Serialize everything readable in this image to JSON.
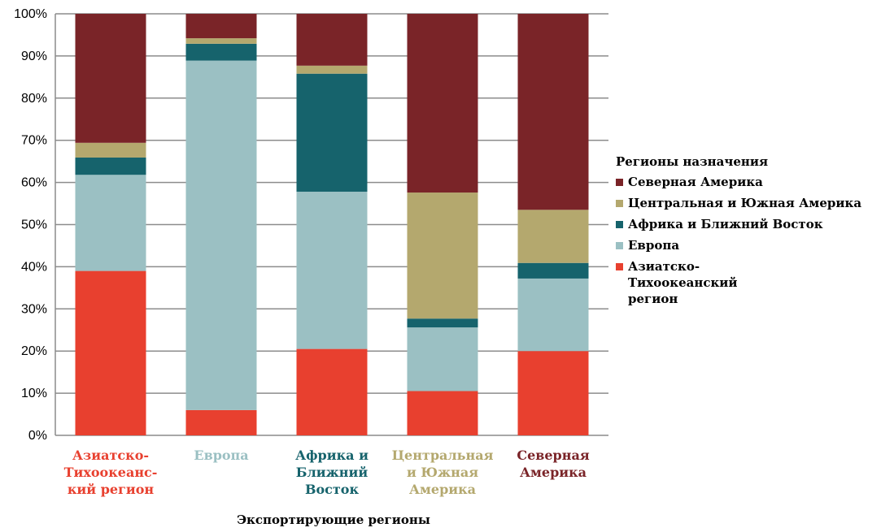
{
  "chart_data": {
    "type": "bar",
    "stacked": true,
    "percent": true,
    "categories": [
      "Азиатско-\nТихоокеанс-\nкий регион",
      "Европа",
      "Африка и\nБлижний\nВосток",
      "Центральная\nи Южная\nАмерика",
      "Северная\nАмерика"
    ],
    "category_colors": [
      "#e8402f",
      "#9bc0c3",
      "#16636c",
      "#b4a86e",
      "#7a2428"
    ],
    "series": [
      {
        "name": "Азиатско-Тихоокеанский регион",
        "color": "#e8402f",
        "values": [
          39,
          6,
          20.5,
          10.5,
          20
        ]
      },
      {
        "name": "Европа",
        "color": "#9bc0c3",
        "values": [
          22.8,
          82.9,
          37.3,
          15.1,
          17.2
        ]
      },
      {
        "name": "Африка и Ближний Восток",
        "color": "#16636c",
        "values": [
          4.1,
          4,
          28,
          2.1,
          3.7
        ]
      },
      {
        "name": "Центральная и Южная Америка",
        "color": "#b4a86e",
        "values": [
          3.5,
          1.3,
          1.9,
          29.9,
          12.6
        ]
      },
      {
        "name": "Северная Америка",
        "color": "#7a2428",
        "values": [
          30.6,
          5.8,
          12.3,
          42.4,
          46.5
        ]
      }
    ],
    "yticks": [
      "0%",
      "10%",
      "20%",
      "30%",
      "40%",
      "50%",
      "60%",
      "70%",
      "80%",
      "90%",
      "100%"
    ],
    "ylim": [
      0,
      100
    ],
    "xlabel": "Экспортирующие регионы",
    "ylabel": "",
    "legend_title": "Регионы назначения",
    "legend_order": [
      4,
      3,
      2,
      1,
      0
    ],
    "legend_placement": "right",
    "grid": true
  }
}
